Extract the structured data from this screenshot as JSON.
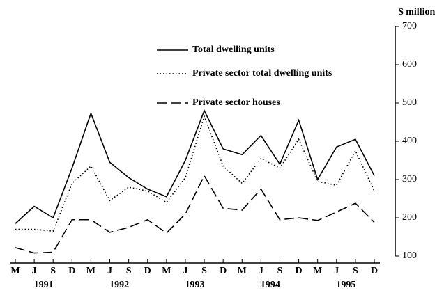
{
  "chart_data": {
    "type": "line",
    "y_label": "$ million",
    "categories": [
      "M",
      "J",
      "S",
      "D",
      "M",
      "J",
      "S",
      "D",
      "M",
      "J",
      "S",
      "D",
      "M",
      "J",
      "S",
      "D",
      "M",
      "J",
      "S",
      "D"
    ],
    "years": [
      "1991",
      "1992",
      "1993",
      "1994",
      "1995"
    ],
    "series": [
      {
        "name": "Total dwelling units",
        "color": "#000000",
        "linestyle": "solid",
        "values": [
          185,
          230,
          200,
          330,
          473,
          345,
          305,
          275,
          255,
          350,
          480,
          380,
          365,
          415,
          340,
          455,
          300,
          385,
          405,
          310
        ]
      },
      {
        "name": "Private sector total dwelling units",
        "color": "#000000",
        "linestyle": "dotted",
        "values": [
          170,
          170,
          165,
          290,
          335,
          245,
          280,
          270,
          240,
          305,
          465,
          335,
          290,
          355,
          330,
          405,
          295,
          285,
          375,
          270
        ]
      },
      {
        "name": "Private sector houses",
        "color": "#000000",
        "linestyle": "dashed",
        "values": [
          122,
          108,
          110,
          195,
          195,
          162,
          175,
          195,
          160,
          210,
          310,
          225,
          220,
          275,
          195,
          200,
          193,
          215,
          238,
          188
        ]
      }
    ],
    "ylim": [
      100,
      700
    ],
    "yticks": [
      100,
      200,
      300,
      400,
      500,
      600,
      700
    ],
    "axis_side": "right"
  }
}
